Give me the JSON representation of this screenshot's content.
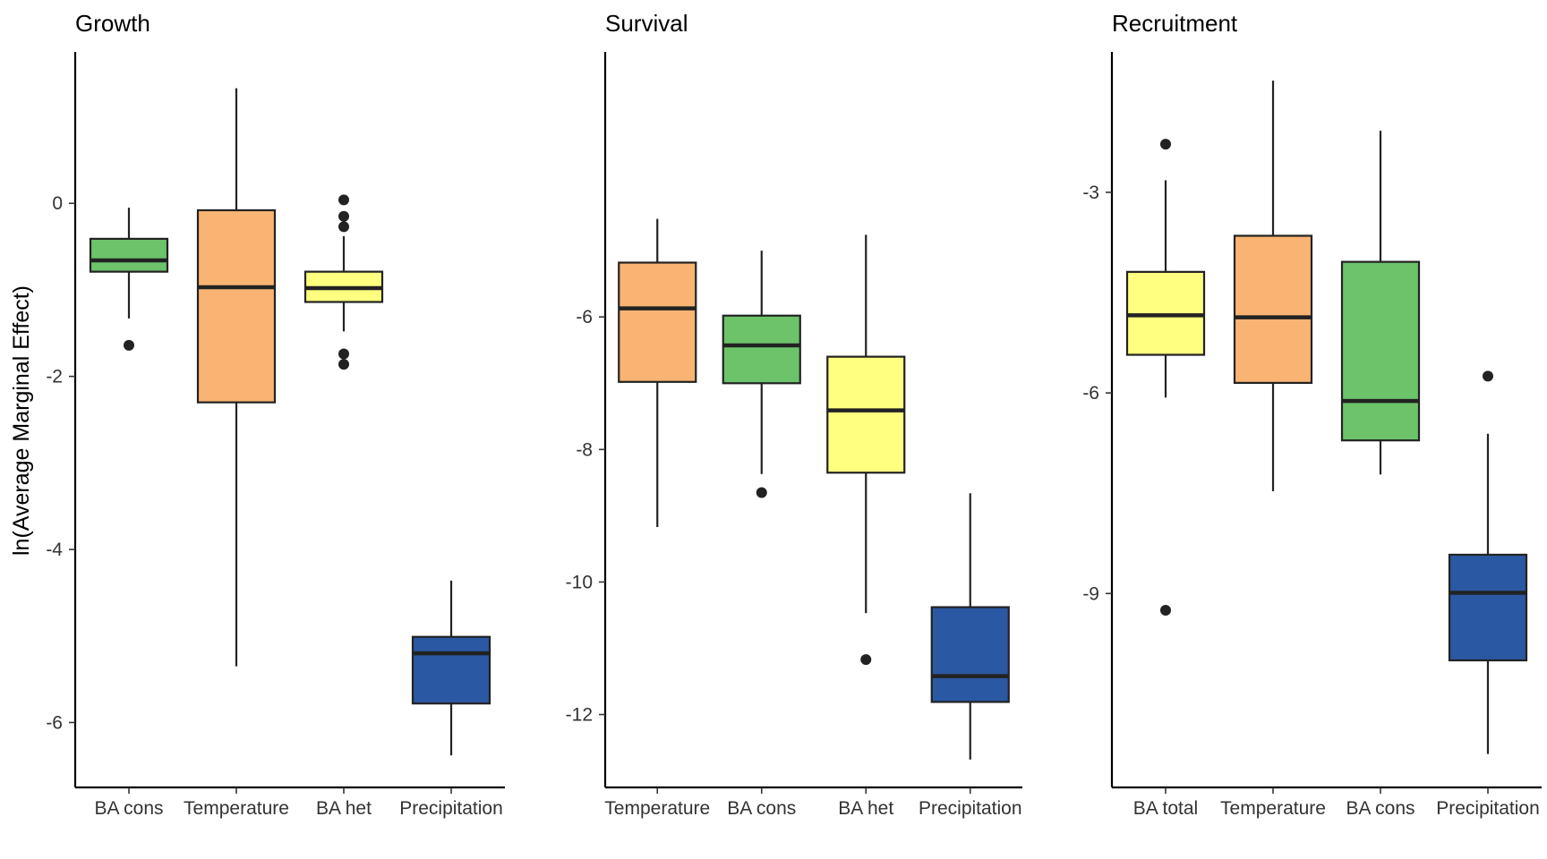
{
  "y_axis_label": "ln(Average Marginal Effect)",
  "colors": {
    "BA cons": "#6CC36A",
    "Temperature": "#F9B473",
    "BA het": "#FFFF80",
    "BA total": "#FFFF80",
    "Precipitation": "#2B58A2"
  },
  "chart_data": [
    {
      "type": "box",
      "title": "Growth",
      "ylim": [
        -6.75,
        1.75
      ],
      "yticks": [
        0,
        -2,
        -4,
        -6
      ],
      "ytick_labels": [
        "0",
        "-2",
        "-4",
        "-6"
      ],
      "categories": [
        "BA cons",
        "Temperature",
        "BA het",
        "Precipitation"
      ],
      "boxes": [
        {
          "label": "BA cons",
          "whisker_low": -1.33,
          "q1": -0.79,
          "median": -0.66,
          "q3": -0.41,
          "whisker_high": -0.05,
          "outliers": [
            -1.64
          ]
        },
        {
          "label": "Temperature",
          "whisker_low": -5.35,
          "q1": -2.3,
          "median": -0.97,
          "q3": -0.08,
          "whisker_high": 1.33,
          "outliers": []
        },
        {
          "label": "BA het",
          "whisker_low": -1.48,
          "q1": -1.14,
          "median": -0.98,
          "q3": -0.79,
          "whisker_high": -0.38,
          "outliers": [
            0.04,
            -0.15,
            -0.27,
            -1.74,
            -1.86
          ]
        },
        {
          "label": "Precipitation",
          "whisker_low": -6.38,
          "q1": -5.78,
          "median": -5.2,
          "q3": -5.01,
          "whisker_high": -4.36,
          "outliers": []
        }
      ]
    },
    {
      "type": "box",
      "title": "Survival",
      "ylim": [
        -13.1,
        -2.0
      ],
      "yticks": [
        -6,
        -8,
        -10,
        -12
      ],
      "ytick_labels": [
        "-6",
        "-8",
        "-10",
        "-12"
      ],
      "categories": [
        "Temperature",
        "BA cons",
        "BA het",
        "Precipitation"
      ],
      "boxes": [
        {
          "label": "Temperature",
          "whisker_low": -9.17,
          "q1": -6.98,
          "median": -5.87,
          "q3": -5.18,
          "whisker_high": -4.52,
          "outliers": []
        },
        {
          "label": "BA cons",
          "whisker_low": -8.37,
          "q1": -7.0,
          "median": -6.43,
          "q3": -5.98,
          "whisker_high": -5.0,
          "outliers": [
            -8.65
          ]
        },
        {
          "label": "BA het",
          "whisker_low": -10.47,
          "q1": -8.35,
          "median": -7.41,
          "q3": -6.6,
          "whisker_high": -4.76,
          "outliers": [
            -11.17
          ]
        },
        {
          "label": "Precipitation",
          "whisker_low": -12.68,
          "q1": -11.81,
          "median": -11.42,
          "q3": -10.38,
          "whisker_high": -8.66,
          "outliers": []
        }
      ]
    },
    {
      "type": "box",
      "title": "Recruitment",
      "ylim": [
        -11.9,
        -0.9
      ],
      "yticks": [
        -3,
        -6,
        -9
      ],
      "ytick_labels": [
        "-3",
        "-6",
        "-9"
      ],
      "categories": [
        "BA total",
        "Temperature",
        "BA cons",
        "Precipitation"
      ],
      "boxes": [
        {
          "label": "BA total",
          "whisker_low": -6.07,
          "q1": -5.43,
          "median": -4.84,
          "q3": -4.19,
          "whisker_high": -2.82,
          "outliers": [
            -2.28,
            -9.25
          ]
        },
        {
          "label": "Temperature",
          "whisker_low": -7.47,
          "q1": -5.85,
          "median": -4.87,
          "q3": -3.65,
          "whisker_high": -1.33,
          "outliers": []
        },
        {
          "label": "BA cons",
          "whisker_low": -7.22,
          "q1": -6.71,
          "median": -6.12,
          "q3": -4.04,
          "whisker_high": -2.08,
          "outliers": []
        },
        {
          "label": "Precipitation",
          "whisker_low": -11.4,
          "q1": -10.0,
          "median": -8.99,
          "q3": -8.42,
          "whisker_high": -6.61,
          "outliers": [
            -5.75
          ]
        }
      ]
    }
  ]
}
